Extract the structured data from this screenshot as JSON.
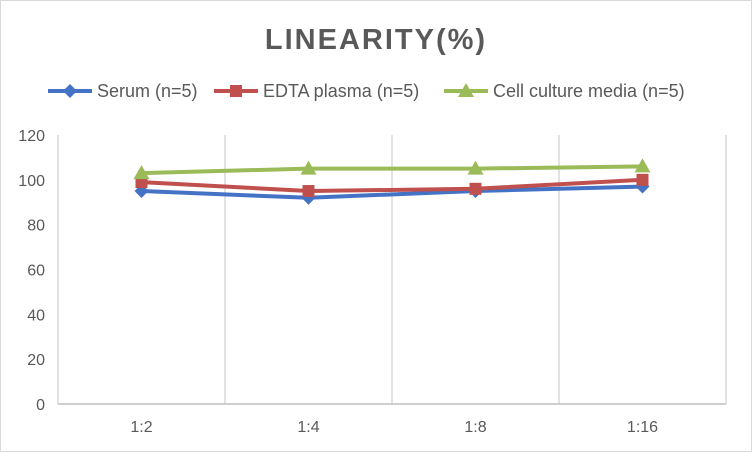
{
  "chart_data": {
    "type": "line",
    "title": "LINEARITY(%)",
    "categories": [
      "1:2",
      "1:4",
      "1:8",
      "1:16"
    ],
    "ylim": [
      0,
      120
    ],
    "yticks": [
      0,
      20,
      40,
      60,
      80,
      100,
      120
    ],
    "grid": "vertical",
    "legend": "top",
    "series": [
      {
        "name": "Serum (n=5)",
        "values": [
          95,
          92,
          95,
          97
        ],
        "color": "#4472C4",
        "marker": "diamond"
      },
      {
        "name": "EDTA plasma (n=5)",
        "values": [
          99,
          95,
          96,
          100
        ],
        "color": "#C0504D",
        "marker": "square"
      },
      {
        "name": "Cell culture media (n=5)",
        "values": [
          103,
          105,
          105,
          106
        ],
        "color": "#9BBB59",
        "marker": "triangle"
      }
    ]
  }
}
